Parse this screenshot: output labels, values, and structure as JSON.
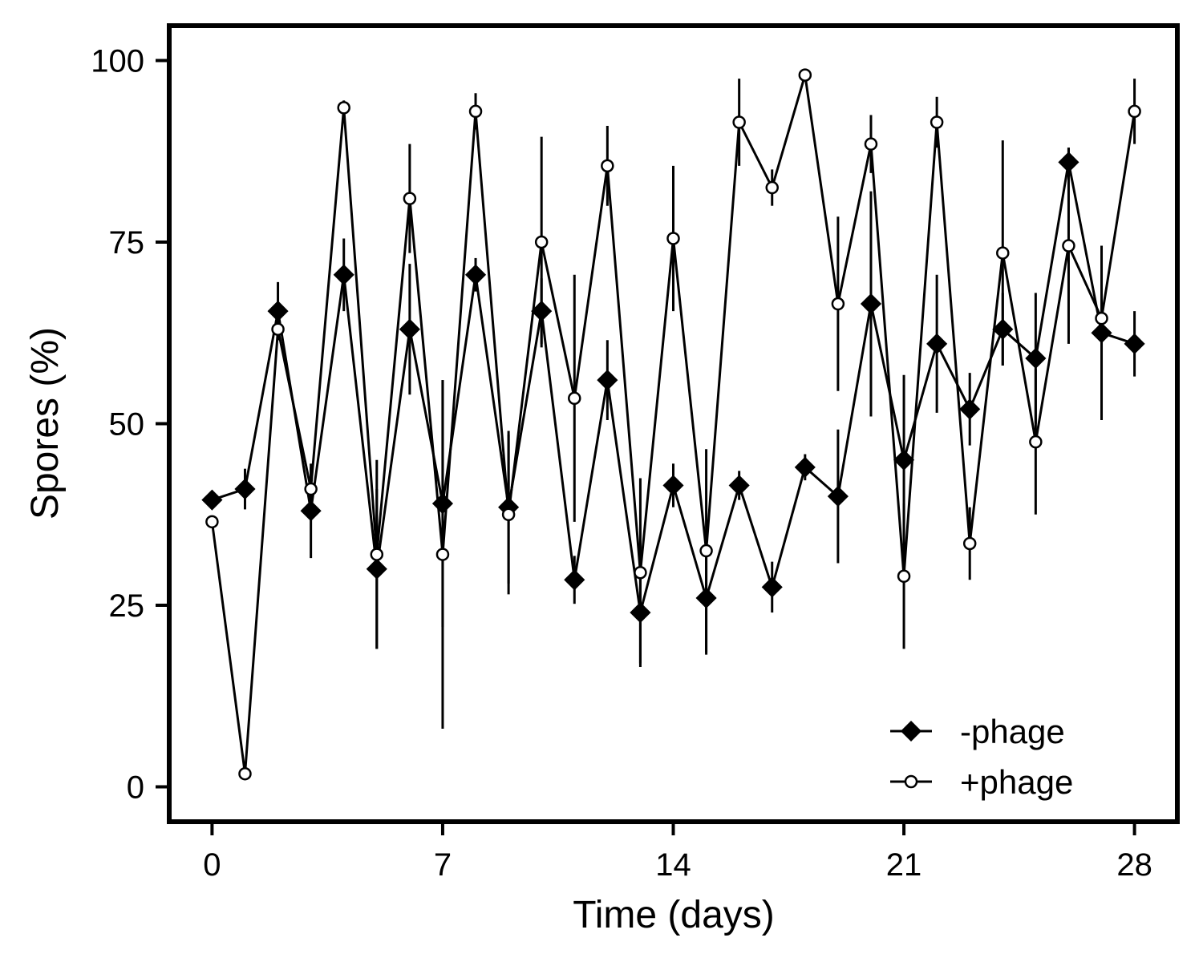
{
  "chart_data": {
    "type": "line",
    "xlabel": "Time (days)",
    "ylabel": "Spores (%)",
    "xlim": [
      -1.3,
      29.3
    ],
    "ylim": [
      -4.8,
      104.8
    ],
    "xticks": [
      0,
      7,
      14,
      21,
      28
    ],
    "yticks": [
      0,
      25,
      50,
      75,
      100
    ],
    "grid": false,
    "legend_position": "bottom-right",
    "x": [
      0,
      1,
      2,
      3,
      4,
      5,
      6,
      7,
      8,
      9,
      10,
      11,
      12,
      13,
      14,
      15,
      16,
      17,
      18,
      19,
      20,
      21,
      22,
      23,
      24,
      25,
      26,
      27,
      28
    ],
    "series": [
      {
        "name": "-phage",
        "marker": "diamond-filled",
        "values": [
          39.5,
          41,
          65.5,
          38,
          70.5,
          30,
          63,
          39,
          70.5,
          38.5,
          65.5,
          28.5,
          56,
          24,
          41.5,
          26,
          41.5,
          27.5,
          44,
          40,
          66.5,
          45,
          61,
          52,
          63,
          59,
          86,
          62.5,
          61
        ],
        "err": [
          1,
          2.8,
          4,
          6.5,
          5,
          11,
          9,
          17,
          2.3,
          10.5,
          4.5,
          3.3,
          5.5,
          7,
          3,
          7.8,
          2,
          3.5,
          1.8,
          9.2,
          15.5,
          11.7,
          9.5,
          5,
          5,
          9,
          2,
          12,
          4.5
        ]
      },
      {
        "name": "+phage",
        "marker": "circle-open",
        "values": [
          36.5,
          1.8,
          63,
          41,
          93.5,
          32,
          81,
          32,
          93,
          37.5,
          75,
          53.5,
          85.5,
          29.5,
          75.5,
          32.5,
          91.5,
          82.5,
          98,
          66.5,
          88.5,
          29,
          91.5,
          33.5,
          73.5,
          47.5,
          74.5,
          64.5,
          93
        ],
        "err": [
          0.5,
          0.5,
          1.5,
          3,
          1,
          13,
          7.5,
          24,
          2.5,
          11,
          14.5,
          17,
          5.5,
          13,
          10,
          14,
          6,
          2.5,
          0.8,
          12,
          4,
          10,
          3.5,
          5,
          15.5,
          10,
          13.5,
          1.5,
          4.5
        ]
      }
    ],
    "colors": {
      "line": "#000000",
      "filled_marker": "#000000",
      "open_marker_fill": "#ffffff"
    }
  }
}
